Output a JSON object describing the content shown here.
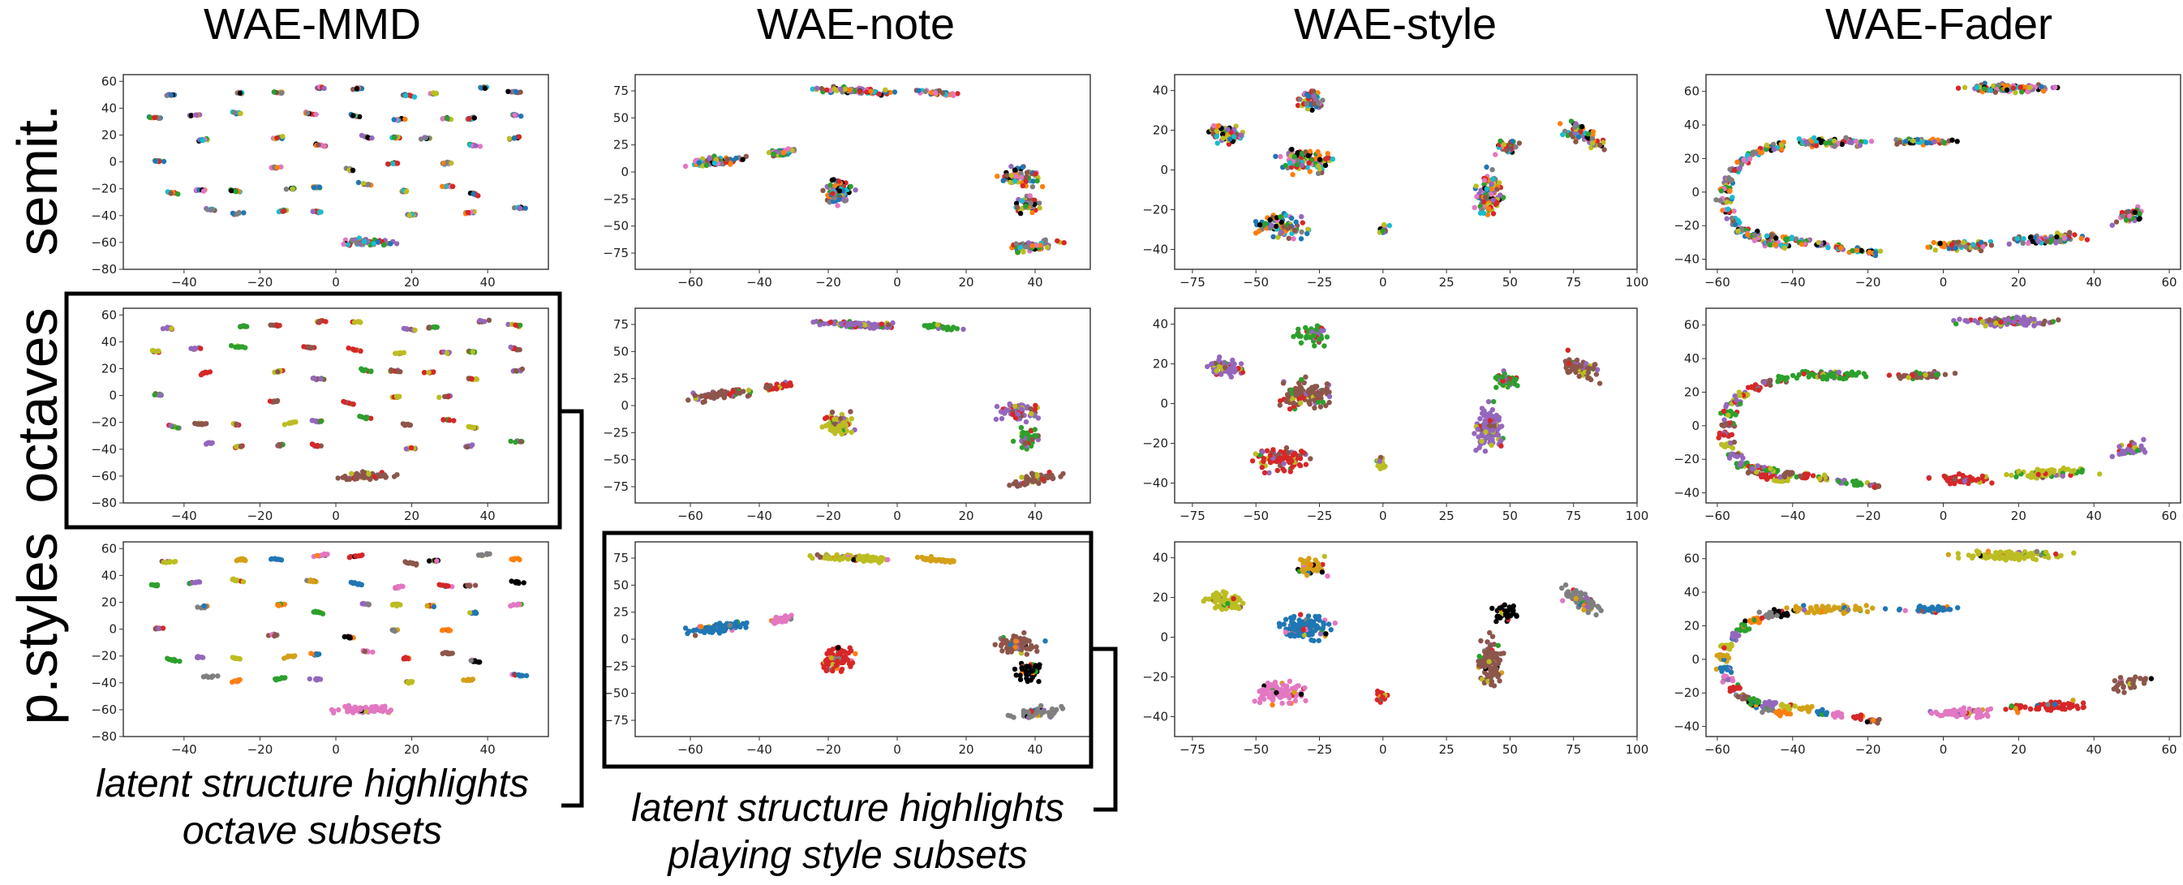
{
  "figure": {
    "column_titles": [
      "WAE-MMD",
      "WAE-note",
      "WAE-style",
      "WAE-Fader"
    ],
    "row_labels": [
      "semit.",
      "octaves",
      "p.styles"
    ],
    "captions": [
      {
        "line1": "latent structure highlights",
        "line2": "octave subsets"
      },
      {
        "line1": "latent structure highlights",
        "line2": "playing style subsets"
      }
    ]
  },
  "palettes": {
    "semit": [
      "#000000",
      "#1f77b4",
      "#ff7f0e",
      "#2ca02c",
      "#d62728",
      "#9467bd",
      "#8c564b",
      "#e377c2",
      "#7f7f7f",
      "#bcbd22",
      "#17becf"
    ],
    "octaves": [
      "#d62728",
      "#9467bd",
      "#8c564b",
      "#bcbd22",
      "#2ca02c"
    ],
    "styles": [
      "#e377c2",
      "#7f7f7f",
      "#bcbd22",
      "#d62728",
      "#ff7f0e",
      "#d4a017",
      "#8c564b",
      "#2ca02c",
      "#1f77b4",
      "#000000",
      "#9467bd"
    ]
  },
  "chart_data": [
    {
      "type": "scatter",
      "model": "WAE-MMD",
      "coloring": "semit.",
      "xlim": [
        -56,
        56
      ],
      "ylim": [
        -80,
        65
      ],
      "xticks": [
        "-40",
        "-20",
        "0",
        "20",
        "40"
      ],
      "yticks": [
        "60",
        "40",
        "20",
        "0",
        "-20",
        "-40",
        "-60",
        "-80"
      ]
    },
    {
      "type": "scatter",
      "model": "WAE-note",
      "coloring": "semit.",
      "xlim": [
        -76,
        56
      ],
      "ylim": [
        -90,
        90
      ],
      "xticks": [
        "-60",
        "-40",
        "-20",
        "0",
        "20",
        "40"
      ],
      "yticks": [
        "75",
        "50",
        "25",
        "0",
        "-25",
        "-50",
        "-75"
      ]
    },
    {
      "type": "scatter",
      "model": "WAE-style",
      "coloring": "semit.",
      "xlim": [
        -82,
        100
      ],
      "ylim": [
        -50,
        48
      ],
      "xticks": [
        "-75",
        "-50",
        "-25",
        "0",
        "25",
        "50",
        "75",
        "100"
      ],
      "yticks": [
        "40",
        "20",
        "0",
        "-20",
        "-40"
      ]
    },
    {
      "type": "scatter",
      "model": "WAE-Fader",
      "coloring": "semit.",
      "xlim": [
        -63,
        63
      ],
      "ylim": [
        -46,
        70
      ],
      "xticks": [
        "-60",
        "-40",
        "-20",
        "0",
        "20",
        "40",
        "60"
      ],
      "yticks": [
        "60",
        "40",
        "20",
        "0",
        "-20",
        "-40"
      ]
    },
    {
      "type": "scatter",
      "model": "WAE-MMD",
      "coloring": "octaves",
      "xlim": [
        -56,
        56
      ],
      "ylim": [
        -80,
        65
      ],
      "xticks": [
        "-40",
        "-20",
        "0",
        "20",
        "40"
      ],
      "yticks": [
        "60",
        "40",
        "20",
        "0",
        "-20",
        "-40",
        "-60",
        "-80"
      ]
    },
    {
      "type": "scatter",
      "model": "WAE-note",
      "coloring": "octaves",
      "xlim": [
        -76,
        56
      ],
      "ylim": [
        -90,
        90
      ],
      "xticks": [
        "-60",
        "-40",
        "-20",
        "0",
        "20",
        "40"
      ],
      "yticks": [
        "75",
        "50",
        "25",
        "0",
        "-25",
        "-50",
        "-75"
      ]
    },
    {
      "type": "scatter",
      "model": "WAE-style",
      "coloring": "octaves",
      "xlim": [
        -82,
        100
      ],
      "ylim": [
        -50,
        48
      ],
      "xticks": [
        "-75",
        "-50",
        "-25",
        "0",
        "25",
        "50",
        "75",
        "100"
      ],
      "yticks": [
        "40",
        "20",
        "0",
        "-20",
        "-40"
      ]
    },
    {
      "type": "scatter",
      "model": "WAE-Fader",
      "coloring": "octaves",
      "xlim": [
        -63,
        63
      ],
      "ylim": [
        -46,
        70
      ],
      "xticks": [
        "-60",
        "-40",
        "-20",
        "0",
        "20",
        "40",
        "60"
      ],
      "yticks": [
        "60",
        "40",
        "20",
        "0",
        "-20",
        "-40"
      ]
    },
    {
      "type": "scatter",
      "model": "WAE-MMD",
      "coloring": "p.styles",
      "xlim": [
        -56,
        56
      ],
      "ylim": [
        -80,
        65
      ],
      "xticks": [
        "-40",
        "-20",
        "0",
        "20",
        "40"
      ],
      "yticks": [
        "60",
        "40",
        "20",
        "0",
        "-20",
        "-40",
        "-60",
        "-80"
      ]
    },
    {
      "type": "scatter",
      "model": "WAE-note",
      "coloring": "p.styles",
      "xlim": [
        -76,
        56
      ],
      "ylim": [
        -90,
        90
      ],
      "xticks": [
        "-60",
        "-40",
        "-20",
        "0",
        "20",
        "40"
      ],
      "yticks": [
        "75",
        "50",
        "25",
        "0",
        "-25",
        "-50",
        "-75"
      ]
    },
    {
      "type": "scatter",
      "model": "WAE-style",
      "coloring": "p.styles",
      "xlim": [
        -82,
        100
      ],
      "ylim": [
        -50,
        48
      ],
      "xticks": [
        "-75",
        "-50",
        "-25",
        "0",
        "25",
        "50",
        "75",
        "100"
      ],
      "yticks": [
        "40",
        "20",
        "0",
        "-20",
        "-40"
      ]
    },
    {
      "type": "scatter",
      "model": "WAE-Fader",
      "coloring": "p.styles",
      "xlim": [
        -63,
        63
      ],
      "ylim": [
        -46,
        70
      ],
      "xticks": [
        "-60",
        "-40",
        "-20",
        "0",
        "20",
        "40",
        "60"
      ],
      "yticks": [
        "60",
        "40",
        "20",
        "0",
        "-20",
        "-40"
      ]
    }
  ]
}
